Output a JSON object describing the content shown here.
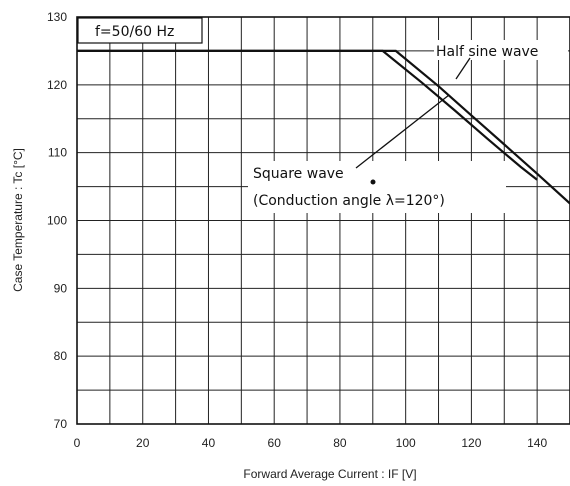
{
  "chart_data": {
    "type": "line",
    "xlabel": "Forward Average Current : IF [V]",
    "ylabel": "Case Temperature : Tc [°C]",
    "xlim": [
      0,
      150
    ],
    "ylim": [
      70,
      130
    ],
    "x_ticks": [
      "0",
      "20",
      "40",
      "60",
      "80",
      "100",
      "120",
      "140"
    ],
    "y_ticks": [
      "70",
      "80",
      "90",
      "100",
      "110",
      "120",
      "130"
    ],
    "grid": true,
    "frequency_label": "f=50/60 Hz",
    "annotations": {
      "half_sine": "Half sine wave",
      "square_line1": "Square wave",
      "square_line2": "(Conduction angle λ=120°)"
    },
    "series": [
      {
        "name": "Half sine wave",
        "x": [
          0,
          97,
          110,
          120,
          130,
          140,
          150
        ],
        "y": [
          125,
          125,
          119.8,
          115.5,
          111.2,
          106.9,
          102.5
        ]
      },
      {
        "name": "Square wave",
        "x": [
          0,
          93,
          105,
          115,
          125,
          135,
          140
        ],
        "y": [
          125,
          125,
          120.3,
          116.2,
          112.0,
          107.9,
          106
        ]
      }
    ],
    "colors": {
      "line": "#111111",
      "grid": "#222222",
      "background": "#ffffff"
    }
  }
}
